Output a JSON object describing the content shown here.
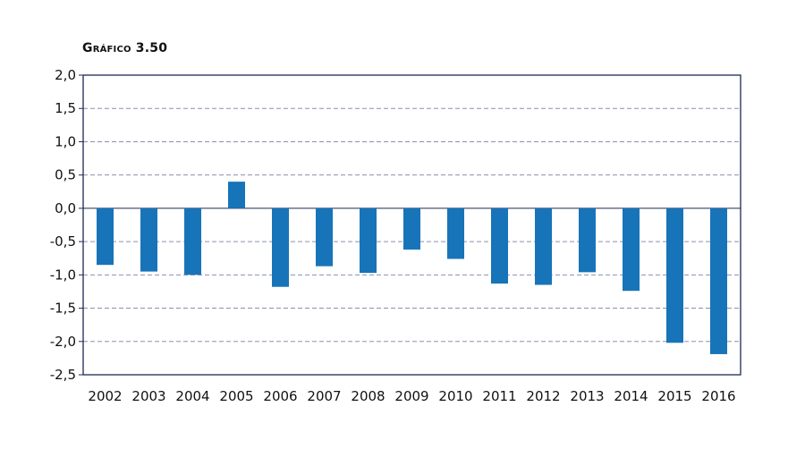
{
  "chart_data": {
    "type": "bar",
    "title": "Gráfico 3.50",
    "categories": [
      "2002",
      "2003",
      "2004",
      "2005",
      "2006",
      "2007",
      "2008",
      "2009",
      "2010",
      "2011",
      "2012",
      "2013",
      "2014",
      "2015",
      "2016"
    ],
    "values": [
      -0.85,
      -0.95,
      -1.0,
      0.4,
      -1.18,
      -0.87,
      -0.97,
      -0.62,
      -0.76,
      -1.13,
      -1.15,
      -0.96,
      -1.24,
      -2.02,
      -2.19
    ],
    "ylim": [
      -2.5,
      2.0
    ],
    "yticks": [
      "2,0",
      "1,5",
      "1,0",
      "0,5",
      "0,0",
      "-0,5",
      "-1,0",
      "-1,5",
      "-2,0",
      "-2,5"
    ],
    "ytick_values": [
      2.0,
      1.5,
      1.0,
      0.5,
      0.0,
      -0.5,
      -1.0,
      -1.5,
      -2.0,
      -2.5
    ],
    "grid": true,
    "bar_color": "#1874b8",
    "grid_color": "#8a90ad",
    "frame_color": "#1c2a55"
  }
}
